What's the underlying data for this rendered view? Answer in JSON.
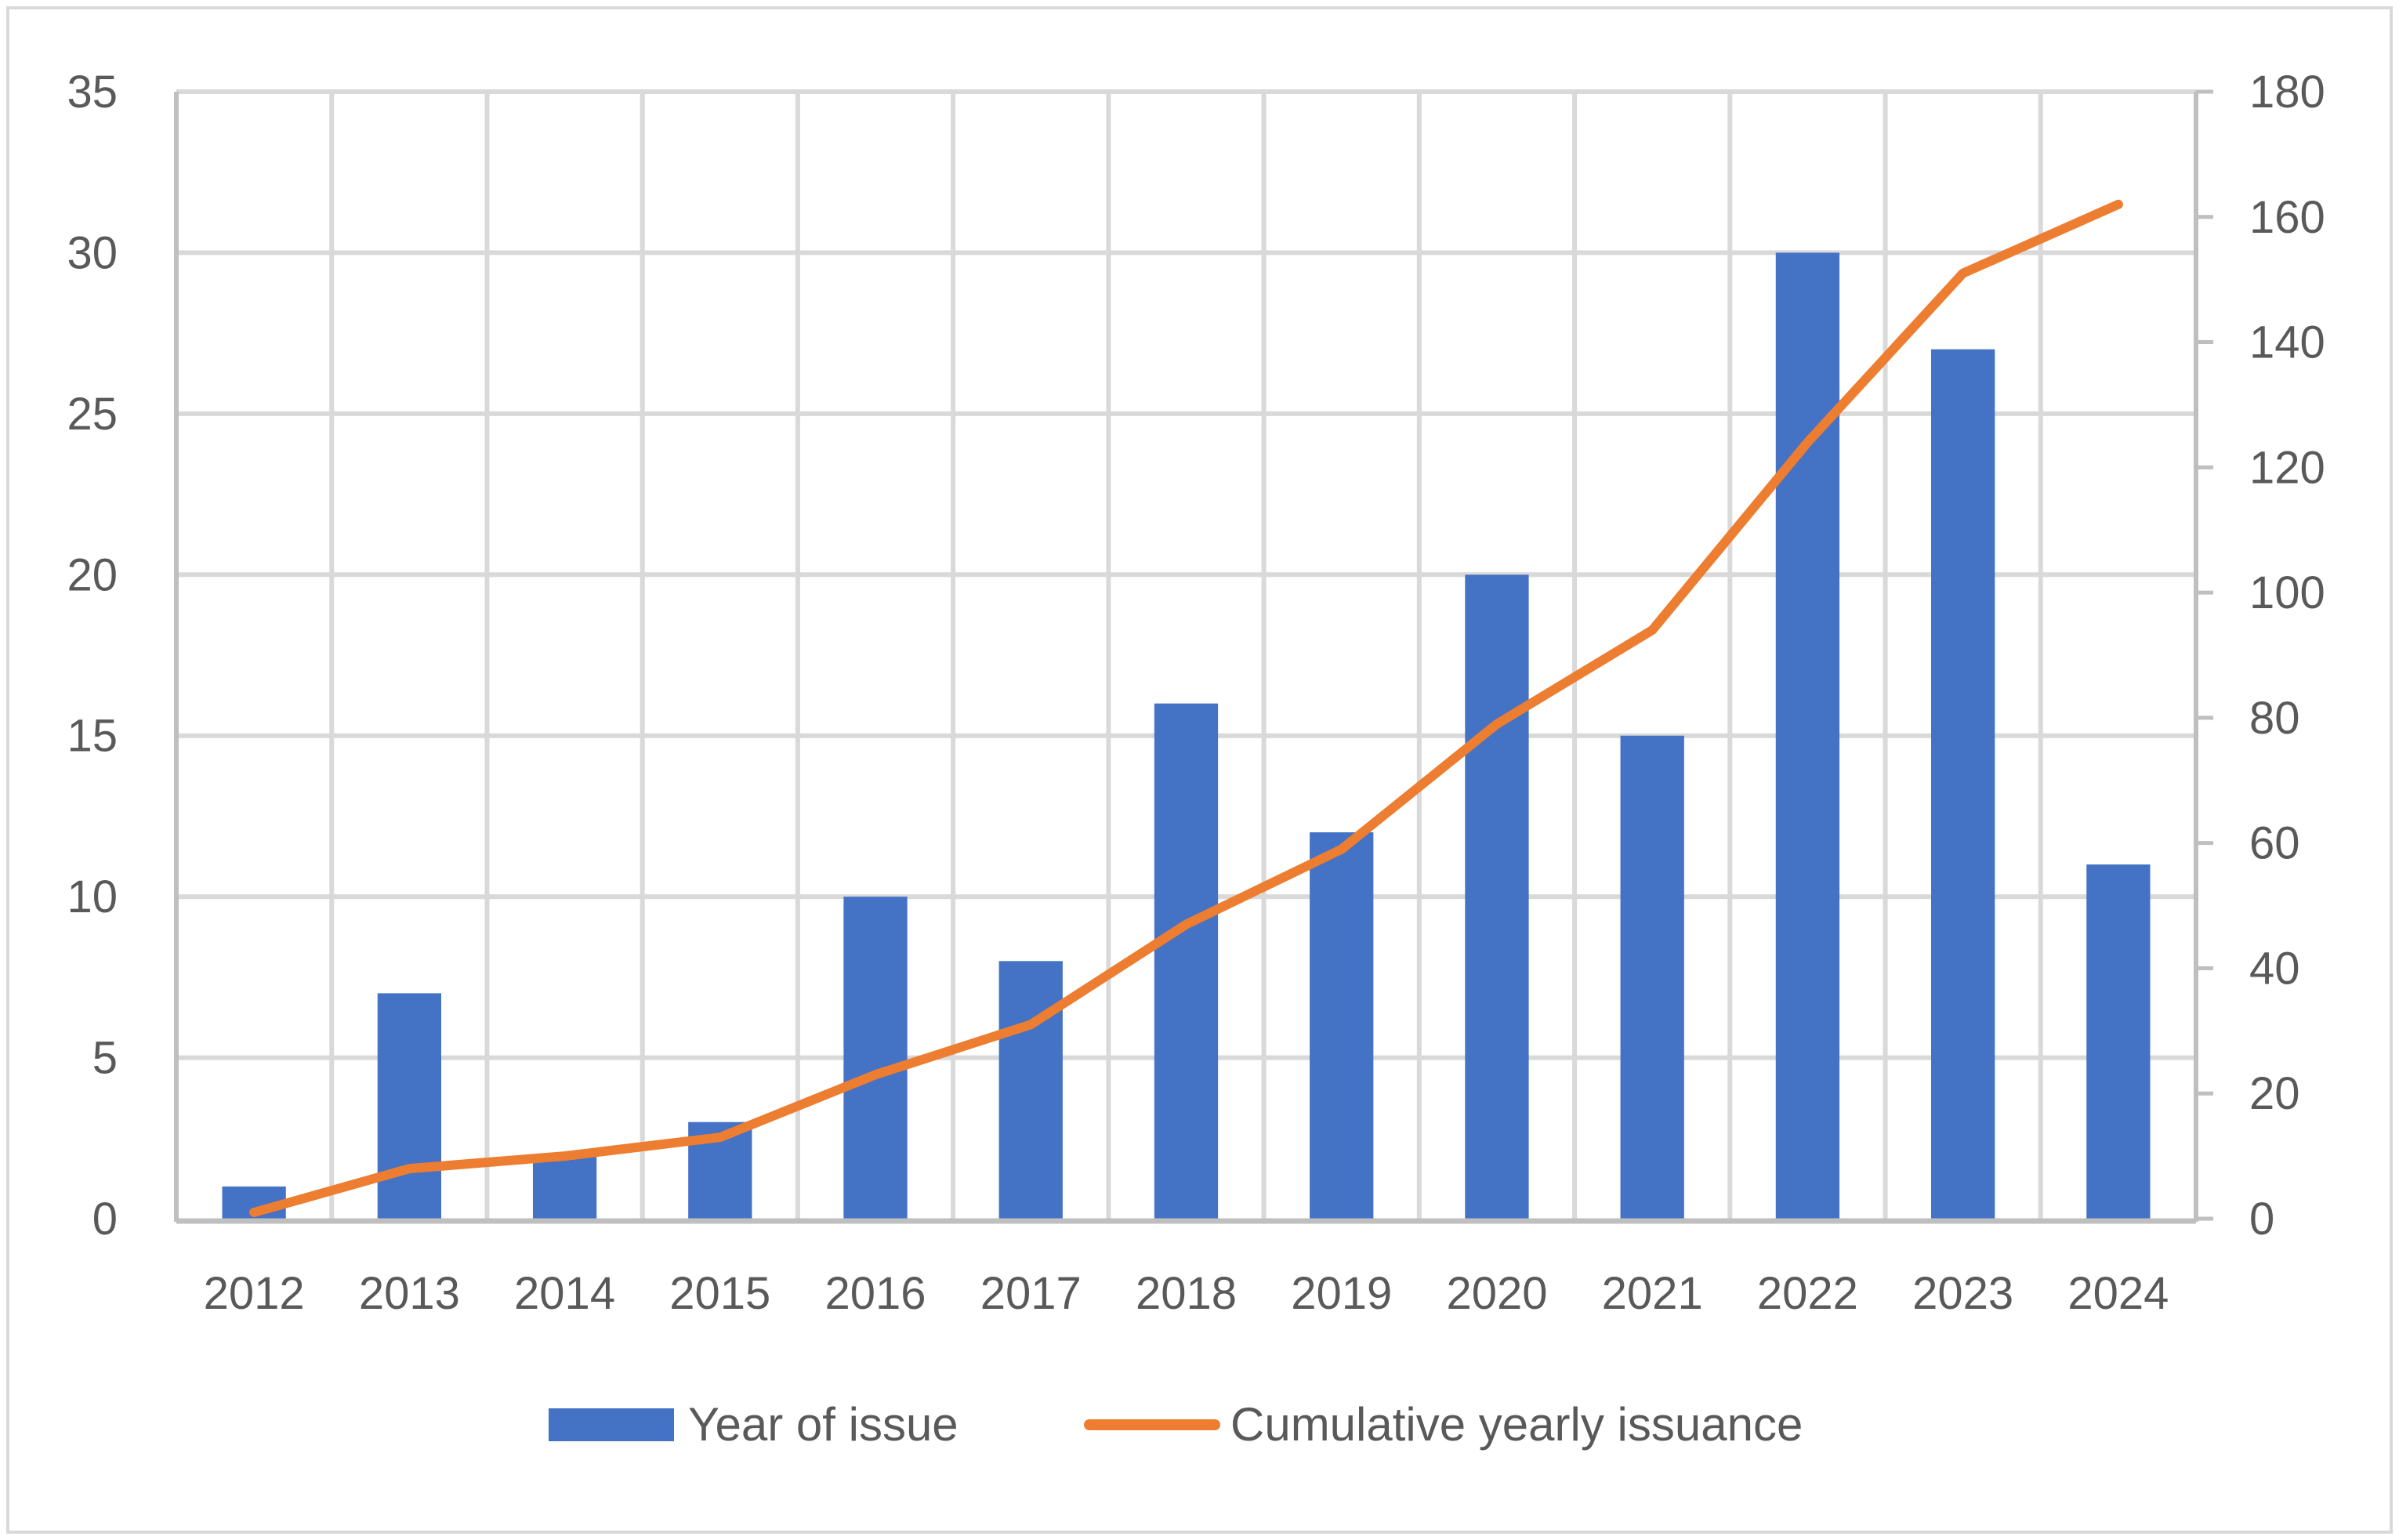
{
  "chart_data": {
    "type": "bar+line",
    "categories": [
      "2012",
      "2013",
      "2014",
      "2015",
      "2016",
      "2017",
      "2018",
      "2019",
      "2020",
      "2021",
      "2022",
      "2023",
      "2024"
    ],
    "series": [
      {
        "name": "Year of issue",
        "type": "bar",
        "axis": "left",
        "color": "#4472C4",
        "values": [
          1,
          7,
          2,
          3,
          10,
          8,
          16,
          12,
          20,
          15,
          30,
          27,
          11
        ]
      },
      {
        "name": "Cumulative yearly issuance",
        "type": "line",
        "axis": "right",
        "color": "#ED7D31",
        "values": [
          1,
          8,
          10,
          13,
          23,
          31,
          47,
          59,
          79,
          94,
          124,
          151,
          162
        ]
      }
    ],
    "y_left": {
      "range": [
        0,
        35
      ],
      "ticks": [
        "0",
        "5",
        "10",
        "15",
        "20",
        "25",
        "30",
        "35"
      ]
    },
    "y_right": {
      "range": [
        0,
        180
      ],
      "ticks": [
        "0",
        "20",
        "40",
        "60",
        "80",
        "100",
        "120",
        "140",
        "160",
        "180"
      ]
    },
    "grid": true,
    "legend_position": "bottom"
  }
}
